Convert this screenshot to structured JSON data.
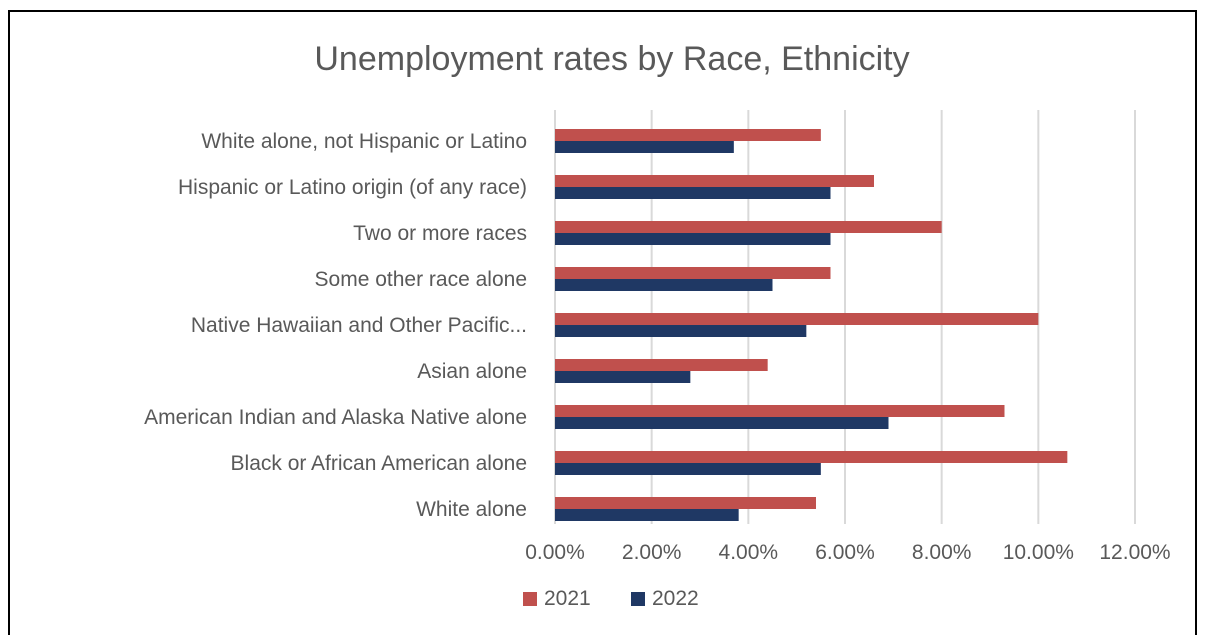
{
  "chart_data": {
    "type": "bar",
    "orientation": "horizontal",
    "title": "Unemployment rates by Race, Ethnicity",
    "categories": [
      "White alone, not Hispanic or Latino",
      "Hispanic or Latino origin (of any race)",
      "Two or more races",
      "Some other race alone",
      "Native Hawaiian and Other Pacific...",
      "Asian alone",
      "American Indian and Alaska Native alone",
      "Black or African American alone",
      "White alone"
    ],
    "series": [
      {
        "name": "2021",
        "color": "#c0504d",
        "values": [
          5.5,
          6.6,
          8.0,
          5.7,
          10.0,
          4.4,
          9.3,
          10.6,
          5.4
        ]
      },
      {
        "name": "2022",
        "color": "#1f3864",
        "values": [
          3.7,
          5.7,
          5.7,
          4.5,
          5.2,
          2.8,
          6.9,
          5.5,
          3.8
        ]
      }
    ],
    "xlim": [
      0,
      12
    ],
    "xticks": [
      0,
      2,
      4,
      6,
      8,
      10,
      12
    ],
    "xtick_labels": [
      "0.00%",
      "2.00%",
      "4.00%",
      "6.00%",
      "8.00%",
      "10.00%",
      "12.00%"
    ],
    "grid": "vertical",
    "legend": "bottom-center",
    "gridline_color": "#d9d9d9"
  }
}
